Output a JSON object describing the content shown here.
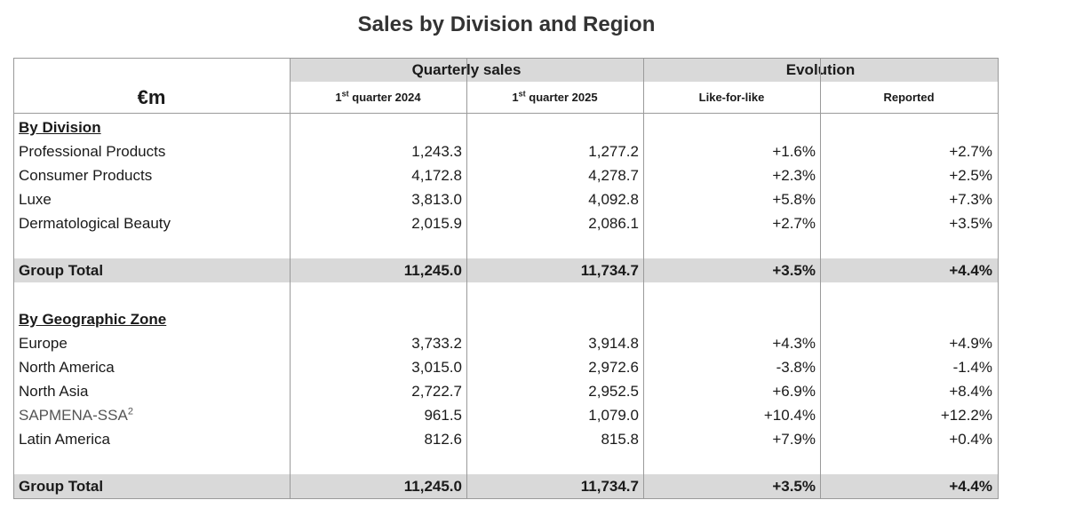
{
  "title": "Sales by Division and Region",
  "header": {
    "unit": "€m",
    "group_quarterly": "Quarterly sales",
    "group_evolution": "Evolution",
    "q2024": {
      "prefix": "1",
      "sup": "st",
      "rest": " quarter 2024"
    },
    "q2025": {
      "prefix": "1",
      "sup": "st",
      "rest": " quarter 2025"
    },
    "lfl": "Like-for-like",
    "reported": "Reported"
  },
  "chart_data": {
    "type": "table",
    "title": "Sales by Division and Region",
    "columns": [
      "€m",
      "1st quarter 2024",
      "1st quarter 2025",
      "Like-for-like",
      "Reported"
    ],
    "sections": {
      "division": {
        "title": "By Division",
        "rows": [
          {
            "label": "Professional Products",
            "q2024": "1,243.3",
            "q2025": "1,277.2",
            "lfl": "+1.6%",
            "reported": "+2.7%"
          },
          {
            "label": "Consumer Products",
            "q2024": "4,172.8",
            "q2025": "4,278.7",
            "lfl": "+2.3%",
            "reported": "+2.5%"
          },
          {
            "label": "Luxe",
            "q2024": "3,813.0",
            "q2025": "4,092.8",
            "lfl": "+5.8%",
            "reported": "+7.3%"
          },
          {
            "label": "Dermatological Beauty",
            "q2024": "2,015.9",
            "q2025": "2,086.1",
            "lfl": "+2.7%",
            "reported": "+3.5%"
          }
        ],
        "total": {
          "label": "Group Total",
          "q2024": "11,245.0",
          "q2025": "11,734.7",
          "lfl": "+3.5%",
          "reported": "+4.4%"
        }
      },
      "zone": {
        "title": "By Geographic Zone",
        "rows": [
          {
            "label": "Europe",
            "q2024": "3,733.2",
            "q2025": "3,914.8",
            "lfl": "+4.3%",
            "reported": "+4.9%"
          },
          {
            "label": "North America",
            "q2024": "3,015.0",
            "q2025": "2,972.6",
            "lfl": "-3.8%",
            "reported": "-1.4%"
          },
          {
            "label": "North Asia",
            "q2024": "2,722.7",
            "q2025": "2,952.5",
            "lfl": "+6.9%",
            "reported": "+8.4%"
          },
          {
            "label": "SAPMENA-SSA",
            "note": "2",
            "q2024": "961.5",
            "q2025": "1,079.0",
            "lfl": "+10.4%",
            "reported": "+12.2%"
          },
          {
            "label": "Latin America",
            "q2024": "812.6",
            "q2025": "815.8",
            "lfl": "+7.9%",
            "reported": "+0.4%"
          }
        ],
        "total": {
          "label": "Group Total",
          "q2024": "11,245.0",
          "q2025": "11,734.7",
          "lfl": "+3.5%",
          "reported": "+4.4%"
        }
      }
    }
  }
}
